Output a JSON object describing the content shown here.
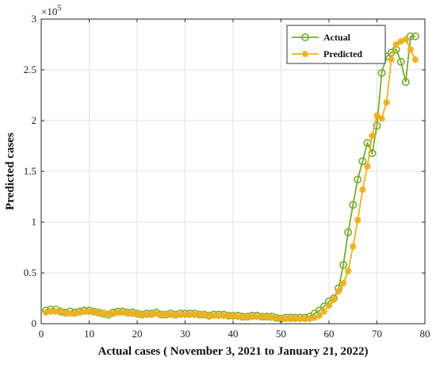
{
  "chart_data": {
    "type": "line",
    "title": "",
    "xlabel": "Actual cases ( November 3, 2021 to January 21, 2022)",
    "ylabel": "Predicted cases",
    "xlim": [
      0,
      80
    ],
    "ylim": [
      0,
      3
    ],
    "x_ticks": [
      "0",
      "10",
      "20",
      "30",
      "40",
      "50",
      "60",
      "70",
      "80"
    ],
    "y_ticks": [
      "0",
      "0.5",
      "1",
      "1.5",
      "2",
      "2.5",
      "3"
    ],
    "y_multiplier": "×10",
    "y_multiplier_exp": "5",
    "grid": true,
    "legend_position": "top-right",
    "series": [
      {
        "name": "Actual",
        "color": "#77AC30",
        "marker": "open-circle",
        "x": [
          1,
          2,
          3,
          4,
          5,
          6,
          7,
          8,
          9,
          10,
          11,
          12,
          13,
          14,
          15,
          16,
          17,
          18,
          19,
          20,
          21,
          22,
          23,
          24,
          25,
          26,
          27,
          28,
          29,
          30,
          31,
          32,
          33,
          34,
          35,
          36,
          37,
          38,
          39,
          40,
          41,
          42,
          43,
          44,
          45,
          46,
          47,
          48,
          49,
          50,
          51,
          52,
          53,
          54,
          55,
          56,
          57,
          58,
          59,
          60,
          61,
          62,
          63,
          64,
          65,
          66,
          67,
          68,
          69,
          70,
          71,
          72,
          73,
          74,
          75,
          76,
          77,
          78
        ],
        "values": [
          0.13,
          0.14,
          0.14,
          0.12,
          0.11,
          0.12,
          0.11,
          0.12,
          0.13,
          0.13,
          0.12,
          0.11,
          0.1,
          0.09,
          0.11,
          0.12,
          0.12,
          0.11,
          0.11,
          0.1,
          0.09,
          0.1,
          0.1,
          0.11,
          0.09,
          0.09,
          0.1,
          0.09,
          0.1,
          0.1,
          0.1,
          0.1,
          0.09,
          0.09,
          0.08,
          0.09,
          0.09,
          0.09,
          0.08,
          0.08,
          0.08,
          0.07,
          0.07,
          0.08,
          0.08,
          0.07,
          0.07,
          0.07,
          0.06,
          0.05,
          0.06,
          0.06,
          0.06,
          0.06,
          0.06,
          0.07,
          0.1,
          0.13,
          0.17,
          0.22,
          0.25,
          0.35,
          0.58,
          0.9,
          1.17,
          1.42,
          1.6,
          1.78,
          1.68,
          1.95,
          2.47,
          2.63,
          2.67,
          2.7,
          2.58,
          2.38,
          2.83,
          2.83
        ]
      },
      {
        "name": "Predicted",
        "color": "#EDB120",
        "marker": "asterisk",
        "x": [
          1,
          2,
          3,
          4,
          5,
          6,
          7,
          8,
          9,
          10,
          11,
          12,
          13,
          14,
          15,
          16,
          17,
          18,
          19,
          20,
          21,
          22,
          23,
          24,
          25,
          26,
          27,
          28,
          29,
          30,
          31,
          32,
          33,
          34,
          35,
          36,
          37,
          38,
          39,
          40,
          41,
          42,
          43,
          44,
          45,
          46,
          47,
          48,
          49,
          50,
          51,
          52,
          53,
          54,
          55,
          56,
          57,
          58,
          59,
          60,
          61,
          62,
          63,
          64,
          65,
          66,
          67,
          68,
          69,
          70,
          71,
          72,
          73,
          74,
          75,
          76,
          77,
          78
        ],
        "values": [
          0.11,
          0.12,
          0.12,
          0.12,
          0.11,
          0.1,
          0.1,
          0.11,
          0.12,
          0.12,
          0.12,
          0.11,
          0.1,
          0.1,
          0.1,
          0.11,
          0.11,
          0.11,
          0.1,
          0.1,
          0.09,
          0.09,
          0.09,
          0.1,
          0.09,
          0.09,
          0.09,
          0.09,
          0.09,
          0.09,
          0.09,
          0.09,
          0.09,
          0.09,
          0.08,
          0.08,
          0.08,
          0.08,
          0.08,
          0.08,
          0.07,
          0.07,
          0.07,
          0.07,
          0.07,
          0.07,
          0.07,
          0.06,
          0.06,
          0.05,
          0.05,
          0.05,
          0.05,
          0.05,
          0.05,
          0.05,
          0.06,
          0.08,
          0.12,
          0.18,
          0.24,
          0.32,
          0.4,
          0.52,
          0.76,
          1.02,
          1.32,
          1.55,
          1.85,
          2.05,
          2.02,
          2.18,
          2.6,
          2.75,
          2.78,
          2.8,
          2.7,
          2.6
        ]
      }
    ]
  }
}
